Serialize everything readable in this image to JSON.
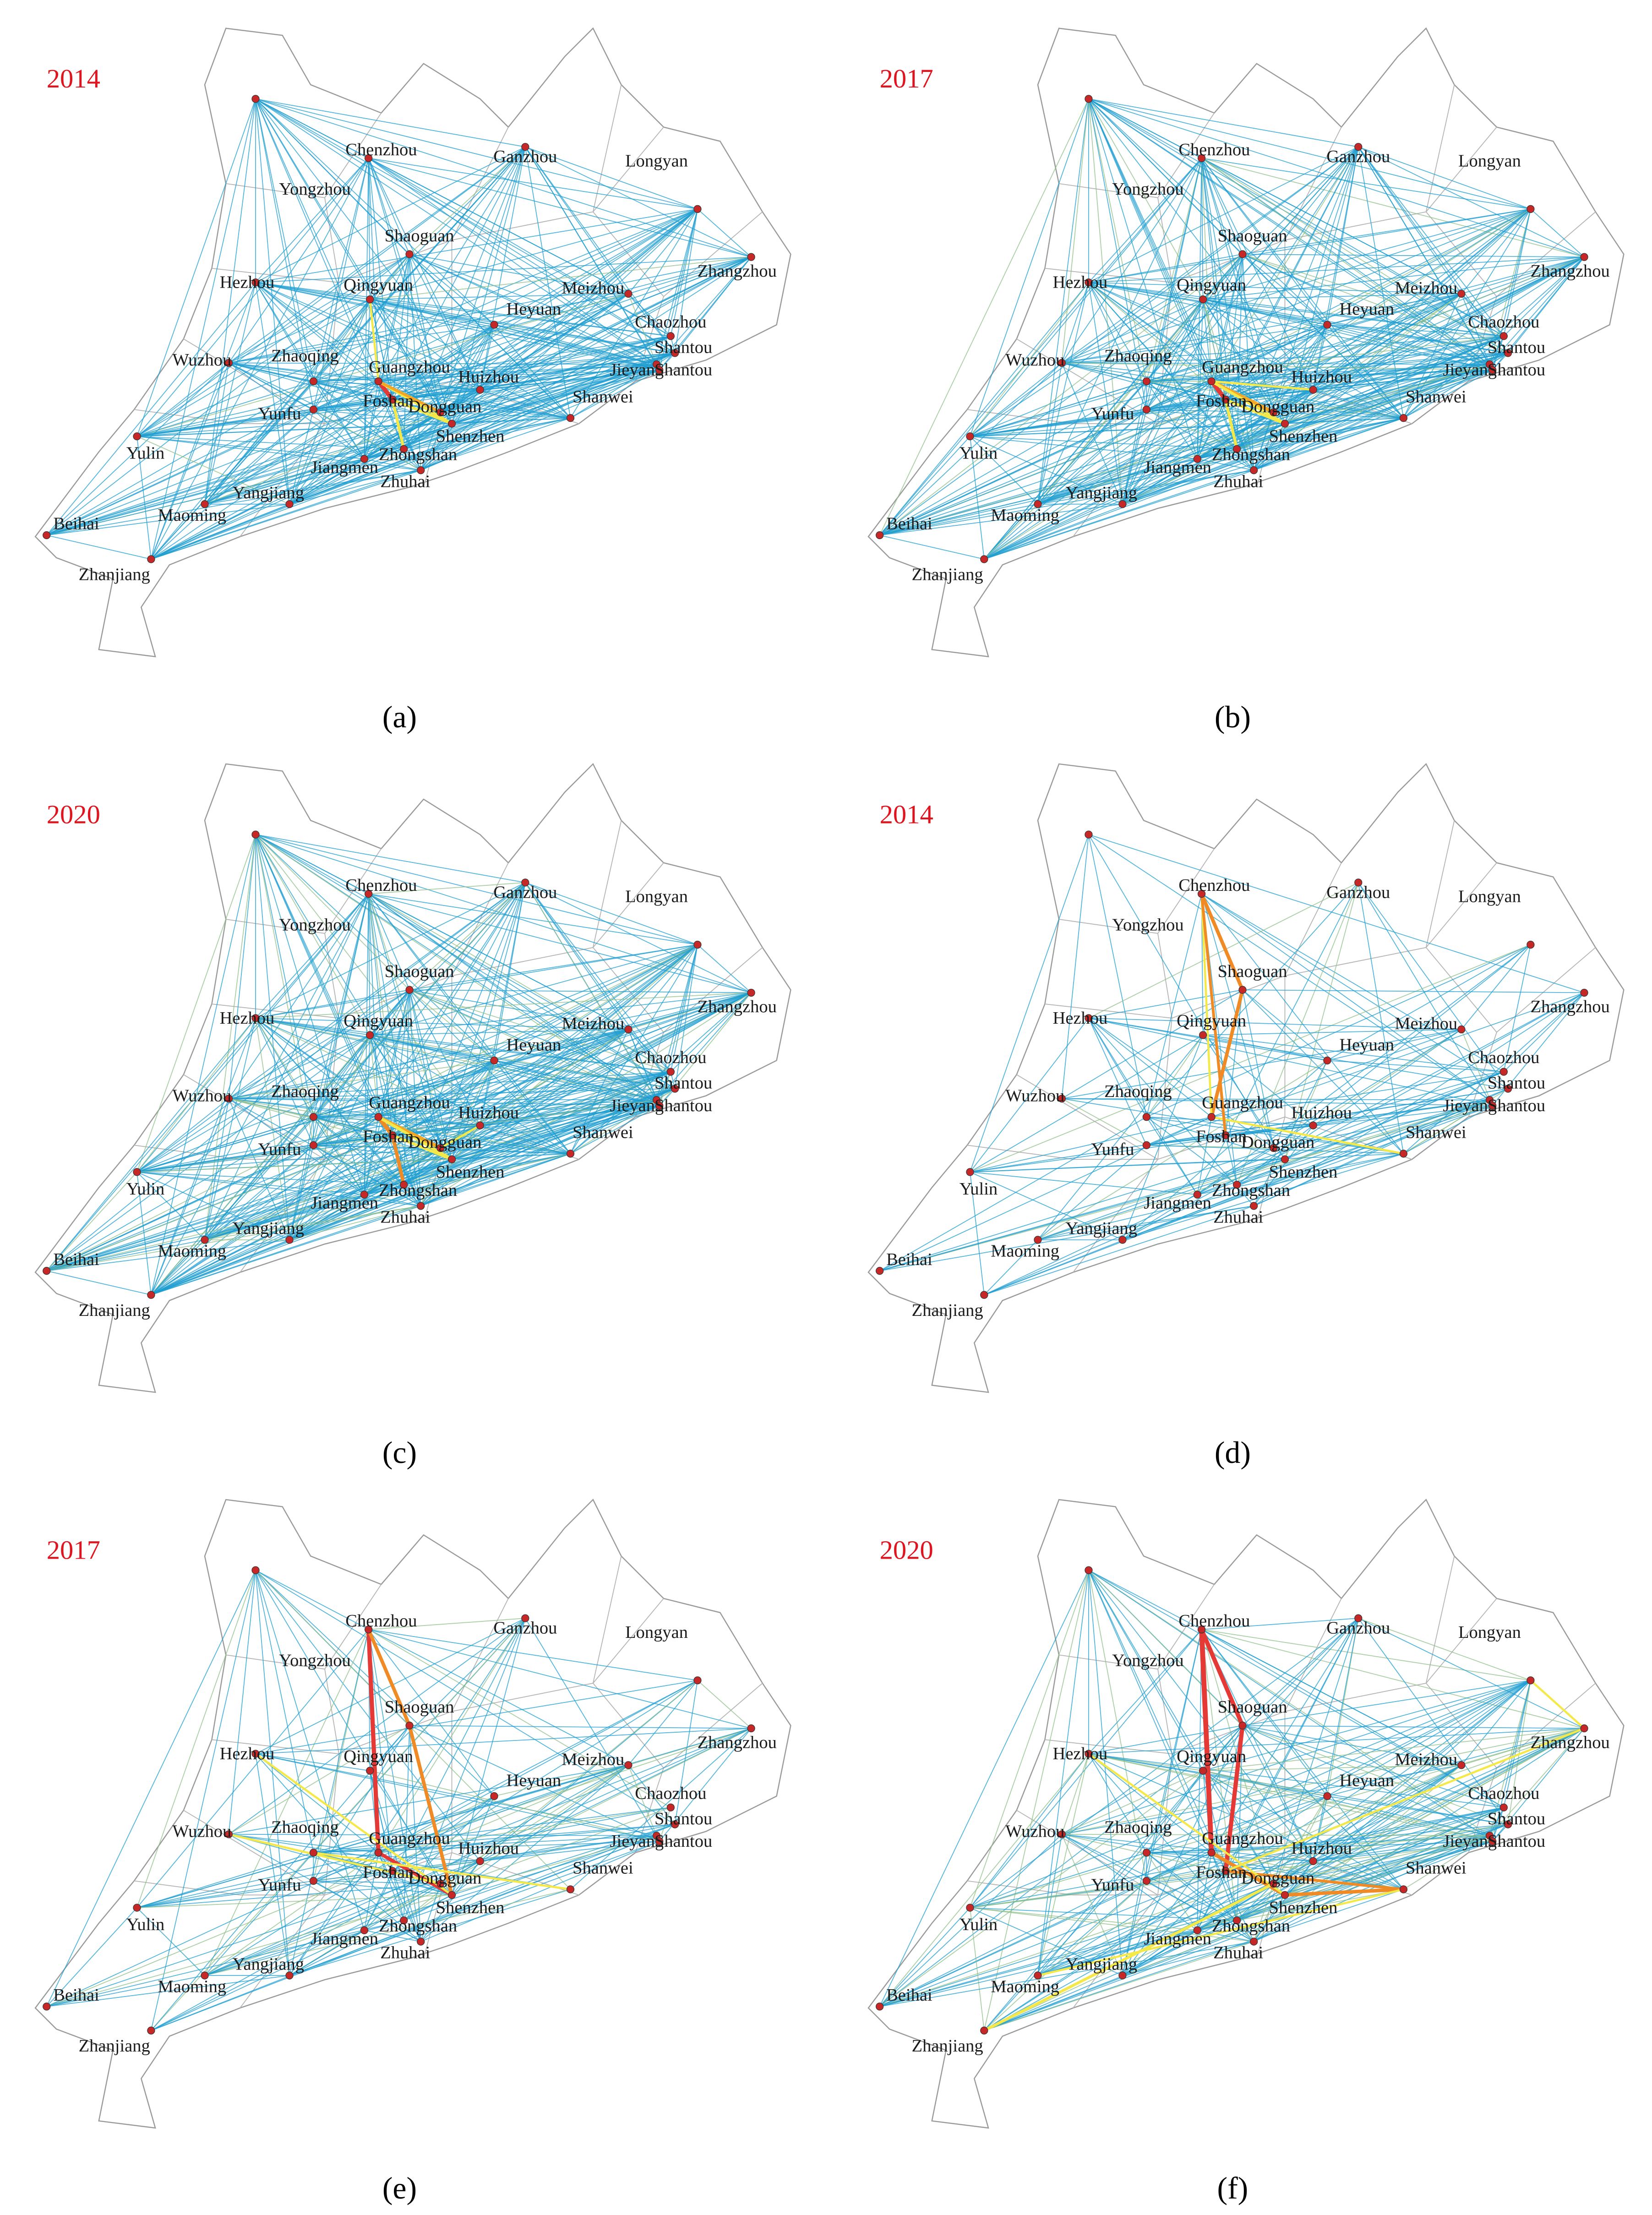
{
  "panels": [
    {
      "year": "2014",
      "caption": "(a)"
    },
    {
      "year": "2017",
      "caption": "(b)"
    },
    {
      "year": "2020",
      "caption": "(c)"
    },
    {
      "year": "2014",
      "caption": "(d)"
    },
    {
      "year": "2017",
      "caption": "(e)"
    },
    {
      "year": "2020",
      "caption": "(f)"
    }
  ],
  "cities": [
    "Yongzhou",
    "Chenzhou",
    "Ganzhou",
    "Longyan",
    "Shaoguan",
    "Zhangzhou",
    "Hezhou",
    "Qingyuan",
    "Heyuan",
    "Meizhou",
    "Chaozhou",
    "Shantou",
    "Wuzhou",
    "Zhaoqing",
    "Guangzhou",
    "Huizhou",
    "Jieyang",
    "Shantou",
    "Yunfu",
    "Foshan",
    "Dongguan",
    "Shanwei",
    "Yulin",
    "Shenzhen",
    "Jiangmen",
    "Zhongshan",
    "Yangjiang",
    "Zhuhai",
    "Beihai",
    "Maoming",
    "Zhanjiang"
  ]
}
